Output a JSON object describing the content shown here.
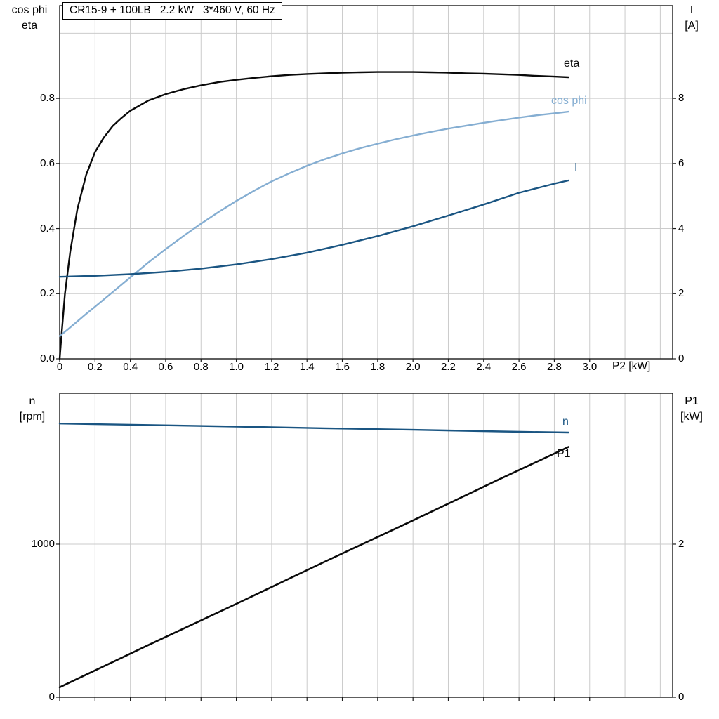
{
  "header": {
    "title": "CR15-9 + 100LB   2.2 kW   3*460 V, 60 Hz"
  },
  "colors": {
    "black": "#0a0a0a",
    "dark_blue": "#1a5582",
    "light_blue": "#85aed2",
    "grid": "#cbcbcb",
    "frame": "#1a1a1a",
    "background": "#ffffff"
  },
  "axes": {
    "top_left_line1": "cos phi",
    "top_left_line2": "eta",
    "top_right_line1": "I",
    "top_right_line2": "[A]",
    "top_x_label": "P2 [kW]",
    "bottom_left_line1": "n",
    "bottom_left_line2": "[rpm]",
    "bottom_right_line1": "P1",
    "bottom_right_line2": "[kW]"
  },
  "curve_labels": {
    "eta": "eta",
    "cos_phi": "cos phi",
    "current": "I",
    "speed": "n",
    "power_in": "P1"
  },
  "chart_data": [
    {
      "id": "motor-efficiency-chart",
      "type": "line",
      "title": "CR15-9 + 100LB   2.2 kW   3*460 V, 60 Hz",
      "x_label": "P2 [kW]",
      "xlim": [
        0,
        3.47
      ],
      "x_tick_values": [
        0,
        0.2,
        0.4,
        0.6,
        0.8,
        1.0,
        1.2,
        1.4,
        1.6,
        1.8,
        2.0,
        2.2,
        2.4,
        2.6,
        2.8,
        3.0
      ],
      "x_tick_labels": [
        "0",
        "0.2",
        "0.4",
        "0.6",
        "0.8",
        "1.0",
        "1.2",
        "1.4",
        "1.6",
        "1.8",
        "2.0",
        "2.2",
        "2.4",
        "2.6",
        "2.8",
        "3.0"
      ],
      "y_left_label": "cos phi / eta",
      "ylim_left": [
        0,
        1.085
      ],
      "y_left_ticks": [
        0,
        0.2,
        0.4,
        0.6,
        0.8
      ],
      "y_left_tick_labels": [
        "0.0",
        "0.2",
        "0.4",
        "0.6",
        "0.8"
      ],
      "y_right_label": "I [A]",
      "ylim_right": [
        0,
        10.85
      ],
      "y_right_ticks": [
        0,
        2,
        4,
        6,
        8
      ],
      "y_right_tick_labels": [
        "0",
        "2",
        "4",
        "6",
        "8"
      ],
      "grid_x": [
        0.2,
        0.4,
        0.6,
        0.8,
        1.0,
        1.2,
        1.4,
        1.6,
        1.8,
        2.0,
        2.2,
        2.4,
        2.6,
        2.8,
        3.0,
        3.2,
        3.4
      ],
      "grid_y": [
        0.2,
        0.4,
        0.6,
        0.8,
        1.0
      ],
      "legend_position": "curve-end-labels",
      "series": [
        {
          "key": "eta",
          "name": "eta",
          "axis": "left",
          "color": "black",
          "width": 2.4,
          "x": [
            0,
            0.01,
            0.03,
            0.06,
            0.1,
            0.15,
            0.2,
            0.25,
            0.3,
            0.35,
            0.4,
            0.5,
            0.6,
            0.7,
            0.8,
            0.9,
            1.0,
            1.1,
            1.2,
            1.3,
            1.4,
            1.5,
            1.6,
            1.7,
            1.8,
            1.9,
            2.0,
            2.1,
            2.2,
            2.3,
            2.4,
            2.5,
            2.6,
            2.7,
            2.8,
            2.88
          ],
          "y": [
            0,
            0.07,
            0.2,
            0.33,
            0.46,
            0.565,
            0.635,
            0.68,
            0.715,
            0.74,
            0.762,
            0.793,
            0.813,
            0.828,
            0.84,
            0.85,
            0.857,
            0.863,
            0.868,
            0.872,
            0.875,
            0.877,
            0.879,
            0.88,
            0.881,
            0.881,
            0.881,
            0.88,
            0.879,
            0.877,
            0.876,
            0.874,
            0.872,
            0.869,
            0.867,
            0.865
          ]
        },
        {
          "key": "cos-phi",
          "name": "cos phi",
          "axis": "left",
          "color": "light_blue",
          "width": 2.4,
          "x": [
            0,
            0.05,
            0.1,
            0.15,
            0.2,
            0.3,
            0.4,
            0.5,
            0.6,
            0.7,
            0.8,
            0.9,
            1.0,
            1.1,
            1.2,
            1.3,
            1.4,
            1.5,
            1.6,
            1.7,
            1.8,
            1.9,
            2.0,
            2.1,
            2.2,
            2.3,
            2.4,
            2.5,
            2.6,
            2.7,
            2.8,
            2.88
          ],
          "y": [
            0.07,
            0.092,
            0.115,
            0.138,
            0.16,
            0.205,
            0.25,
            0.295,
            0.337,
            0.377,
            0.415,
            0.451,
            0.485,
            0.516,
            0.545,
            0.57,
            0.593,
            0.613,
            0.631,
            0.647,
            0.661,
            0.674,
            0.686,
            0.697,
            0.707,
            0.716,
            0.725,
            0.733,
            0.741,
            0.748,
            0.754,
            0.759
          ]
        },
        {
          "key": "current",
          "name": "I",
          "axis": "right",
          "color": "dark_blue",
          "width": 2.4,
          "x": [
            0,
            0.2,
            0.4,
            0.6,
            0.8,
            1.0,
            1.2,
            1.4,
            1.6,
            1.8,
            2.0,
            2.2,
            2.4,
            2.6,
            2.8,
            2.88
          ],
          "y": [
            2.52,
            2.55,
            2.6,
            2.67,
            2.77,
            2.9,
            3.06,
            3.26,
            3.5,
            3.77,
            4.07,
            4.4,
            4.74,
            5.1,
            5.38,
            5.48
          ]
        }
      ]
    },
    {
      "id": "motor-speed-power-chart",
      "type": "line",
      "title": "",
      "x_label": "",
      "xlim": [
        0,
        3.47
      ],
      "x_tick_values": [
        0,
        0.2,
        0.4,
        0.6,
        0.8,
        1.0,
        1.2,
        1.4,
        1.6,
        1.8,
        2.0,
        2.2,
        2.4,
        2.6,
        2.8,
        3.0
      ],
      "x_tick_labels": [],
      "y_left_label": "n [rpm]",
      "ylim_left": [
        0,
        1986
      ],
      "y_left_ticks": [
        0,
        1000
      ],
      "y_left_tick_labels": [
        "0",
        "1000"
      ],
      "y_right_label": "P1 [kW]",
      "ylim_right": [
        0,
        3.972
      ],
      "y_right_ticks": [
        0,
        2
      ],
      "y_right_tick_labels": [
        "0",
        "2"
      ],
      "grid_x": [
        0.2,
        0.4,
        0.6,
        0.8,
        1.0,
        1.2,
        1.4,
        1.6,
        1.8,
        2.0,
        2.2,
        2.4,
        2.6,
        2.8,
        3.0,
        3.2,
        3.4
      ],
      "grid_y": [
        1000
      ],
      "legend_position": "curve-end-labels",
      "series": [
        {
          "key": "speed",
          "name": "n",
          "axis": "left",
          "color": "dark_blue",
          "width": 2.4,
          "x": [
            0,
            0.5,
            1.0,
            1.5,
            2.0,
            2.5,
            2.88
          ],
          "y": [
            1788,
            1778,
            1768,
            1757,
            1747,
            1736,
            1729
          ]
        },
        {
          "key": "power-in",
          "name": "P1",
          "axis": "right",
          "color": "black",
          "width": 2.6,
          "x": [
            0,
            0.5,
            1.0,
            1.5,
            2.0,
            2.5,
            2.88
          ],
          "y": [
            0.13,
            0.68,
            1.22,
            1.77,
            2.31,
            2.86,
            3.27
          ]
        }
      ]
    }
  ]
}
